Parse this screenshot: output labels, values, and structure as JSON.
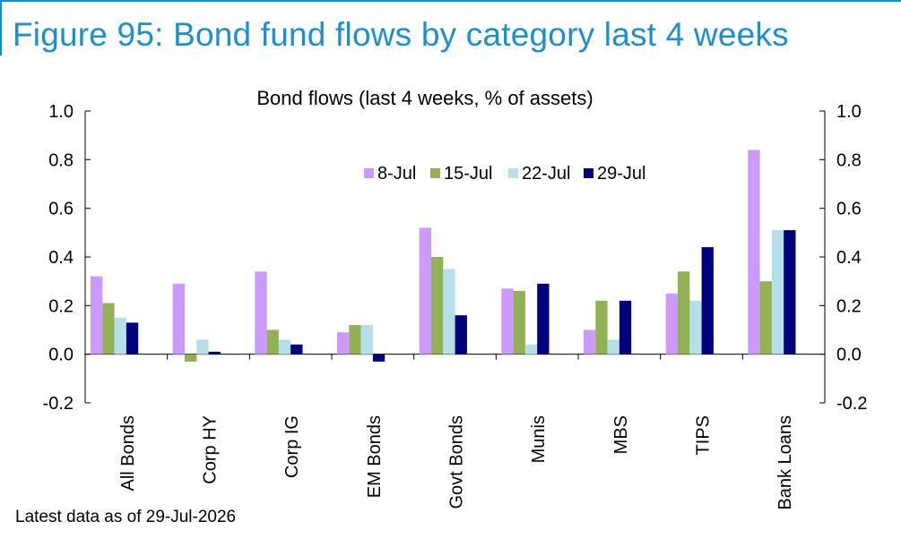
{
  "figure_title": "Figure 95: Bond fund flows by category last 4 weeks",
  "footnote": "Latest data as of 29-Jul-2026",
  "chart_data": {
    "type": "bar",
    "title": "Bond flows (last 4 weeks, % of assets)",
    "xlabel": "",
    "ylabel": "",
    "ylim": [
      -0.2,
      1.0
    ],
    "yticks": [
      "1.0",
      "0.8",
      "0.6",
      "0.4",
      "0.2",
      "0.0",
      "-0.2"
    ],
    "y2ticks": [
      "1.0",
      "0.8",
      "0.6",
      "0.4",
      "0.2",
      "0.0",
      "-0.2"
    ],
    "grid": false,
    "legend_position": "top-right",
    "categories": [
      "All Bonds",
      "Corp HY",
      "Corp IG",
      "EM Bonds",
      "Govt Bonds",
      "Munis",
      "MBS",
      "TIPS",
      "Bank Loans"
    ],
    "series": [
      {
        "name": "8-Jul",
        "color": "#cc99ff",
        "values": [
          0.32,
          0.29,
          0.34,
          0.09,
          0.52,
          0.27,
          0.1,
          0.25,
          0.84
        ]
      },
      {
        "name": "15-Jul",
        "color": "#92b155",
        "values": [
          0.21,
          -0.03,
          0.1,
          0.12,
          0.4,
          0.26,
          0.22,
          0.34,
          0.3
        ]
      },
      {
        "name": "22-Jul",
        "color": "#b5dfe9",
        "values": [
          0.15,
          0.06,
          0.06,
          0.12,
          0.35,
          0.04,
          0.06,
          0.22,
          0.51
        ]
      },
      {
        "name": "29-Jul",
        "color": "#00007f",
        "values": [
          0.13,
          0.01,
          0.04,
          -0.03,
          0.16,
          0.29,
          0.22,
          0.44,
          0.51
        ]
      }
    ]
  }
}
